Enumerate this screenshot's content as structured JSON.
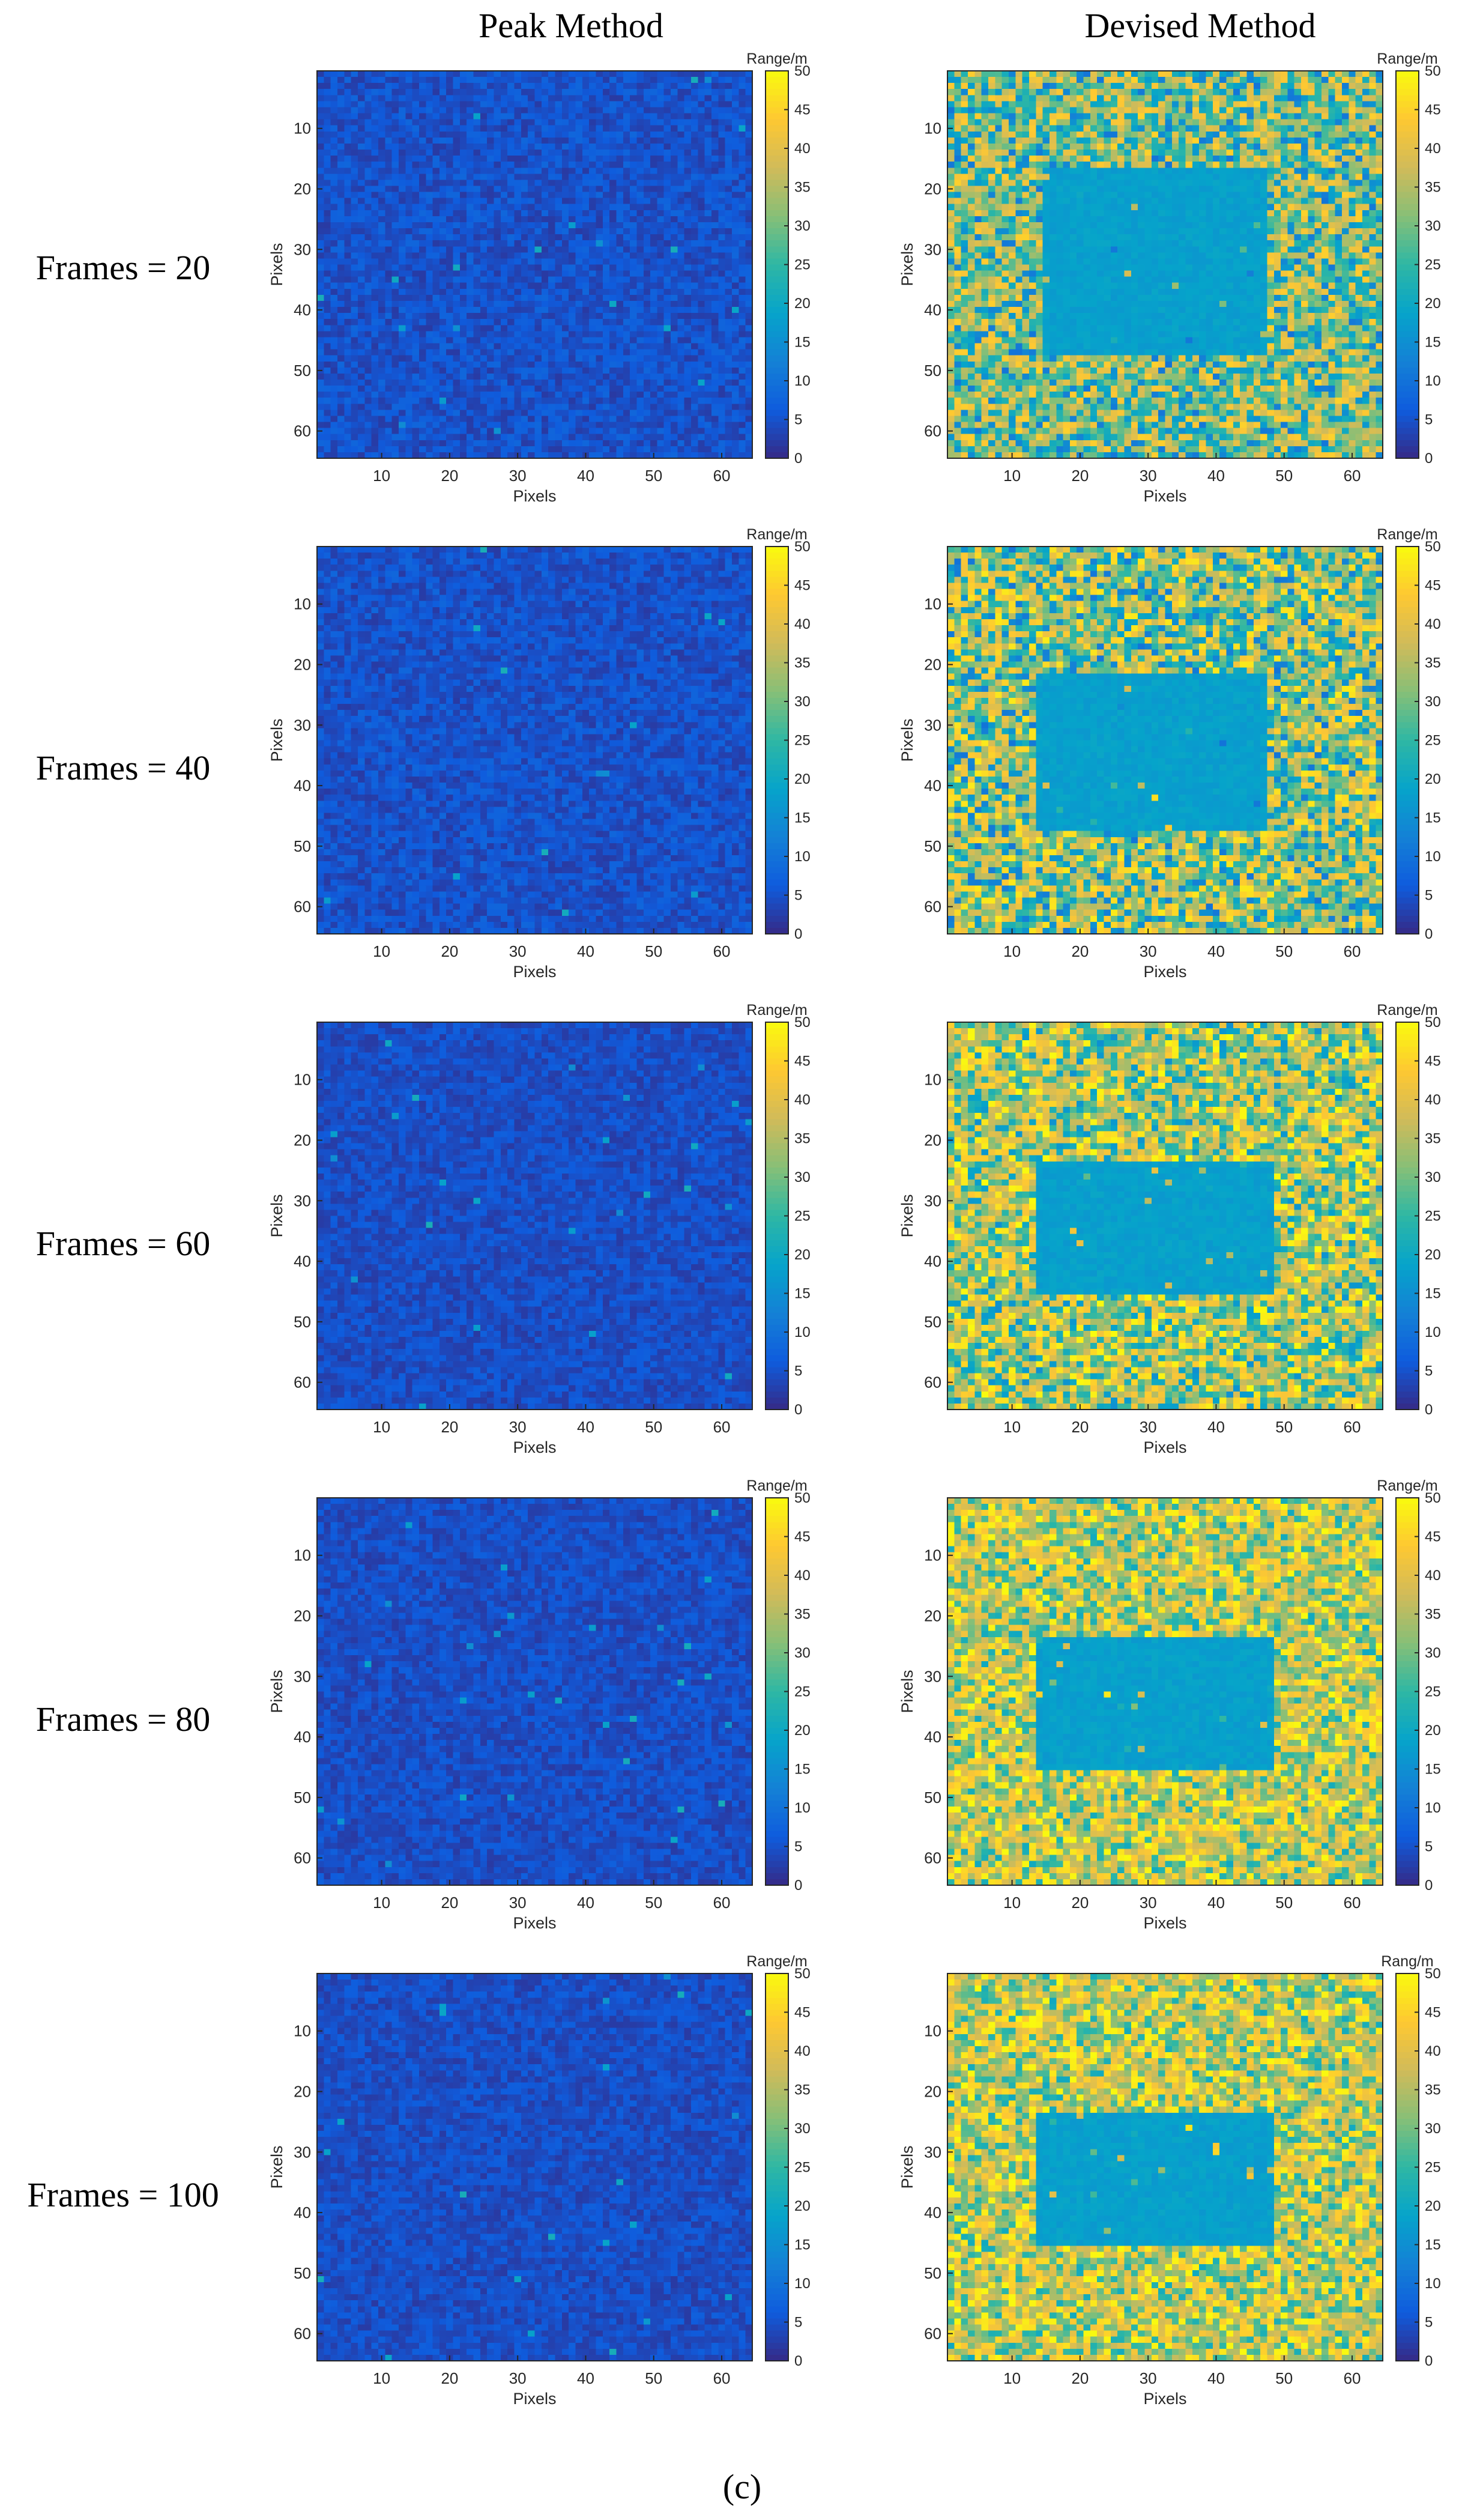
{
  "figure": {
    "column_titles": [
      "Peak Method",
      "Devised Method"
    ],
    "row_labels": [
      "Frames = 20",
      "Frames = 40",
      "Frames = 60",
      "Frames = 80",
      "Frames = 100"
    ],
    "caption": "(c)"
  },
  "chart_data": {
    "type": "heatmap",
    "grid_rows": 5,
    "grid_cols": 2,
    "matrix_size": [
      64,
      64
    ],
    "x_label": "Pixels",
    "y_label": "Pixels",
    "x_ticks": [
      10,
      20,
      30,
      40,
      50,
      60
    ],
    "y_ticks": [
      10,
      20,
      30,
      40,
      50,
      60
    ],
    "x_range": [
      0.5,
      64.5
    ],
    "y_range": [
      0.5,
      64.5
    ],
    "y_direction": "top-to-bottom",
    "colorbar": {
      "labels": [
        "Range/m",
        "Range/m",
        "Range/m",
        "Range/m",
        "Range/m",
        "Range/m",
        "Range/m",
        "Range/m",
        "Range/m",
        "Rang/m"
      ],
      "ticks": [
        0,
        5,
        10,
        15,
        20,
        25,
        30,
        35,
        40,
        45,
        50
      ],
      "range": [
        0,
        50
      ],
      "colormap": "parula",
      "placement": "right"
    },
    "colors": [
      "#352a87",
      "#0f5cdd",
      "#1481d6",
      "#06a4ca",
      "#2eb7a4",
      "#87bf77",
      "#d1bb59",
      "#fec832",
      "#f9fb0e"
    ],
    "panels": [
      {
        "method": "Peak Method",
        "frames": 20,
        "background_range_m": [
          2,
          8
        ],
        "target_rows": [],
        "target_cols": [],
        "target_range_m": null
      },
      {
        "method": "Devised Method",
        "frames": 20,
        "background_range_m": [
          10,
          45
        ],
        "target_rows": [
          17,
          47
        ],
        "target_cols": [
          15,
          47
        ],
        "target_range_m": 18
      },
      {
        "method": "Peak Method",
        "frames": 40,
        "background_range_m": [
          2,
          8
        ],
        "target_rows": [],
        "target_cols": [],
        "target_range_m": null
      },
      {
        "method": "Devised Method",
        "frames": 40,
        "background_range_m": [
          10,
          48
        ],
        "target_rows": [
          22,
          47
        ],
        "target_cols": [
          14,
          47
        ],
        "target_range_m": 18
      },
      {
        "method": "Peak Method",
        "frames": 60,
        "background_range_m": [
          2,
          7
        ],
        "target_rows": [],
        "target_cols": [],
        "target_range_m": null
      },
      {
        "method": "Devised Method",
        "frames": 60,
        "background_range_m": [
          15,
          50
        ],
        "target_rows": [
          24,
          45
        ],
        "target_cols": [
          14,
          48
        ],
        "target_range_m": 18
      },
      {
        "method": "Peak Method",
        "frames": 80,
        "background_range_m": [
          2,
          7
        ],
        "target_rows": [],
        "target_cols": [],
        "target_range_m": null
      },
      {
        "method": "Devised Method",
        "frames": 80,
        "background_range_m": [
          20,
          50
        ],
        "target_rows": [
          24,
          45
        ],
        "target_cols": [
          14,
          48
        ],
        "target_range_m": 18
      },
      {
        "method": "Peak Method",
        "frames": 100,
        "background_range_m": [
          2,
          7
        ],
        "target_rows": [],
        "target_cols": [],
        "target_range_m": null
      },
      {
        "method": "Devised Method",
        "frames": 100,
        "background_range_m": [
          20,
          50
        ],
        "target_rows": [
          24,
          45
        ],
        "target_cols": [
          14,
          48
        ],
        "target_range_m": 18
      }
    ]
  }
}
